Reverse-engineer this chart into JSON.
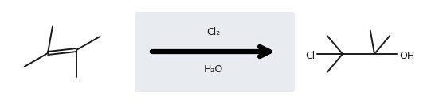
{
  "background_color": "#ffffff",
  "arrow_box_color": "#e8ebf0",
  "arrow_color": "#000000",
  "reagent_above": "Cl₂",
  "reagent_below": "H₂O",
  "text_color": "#1a1a1a",
  "figsize": [
    5.46,
    1.31
  ],
  "dpi": 100,
  "line_color": "#1a1a1a"
}
